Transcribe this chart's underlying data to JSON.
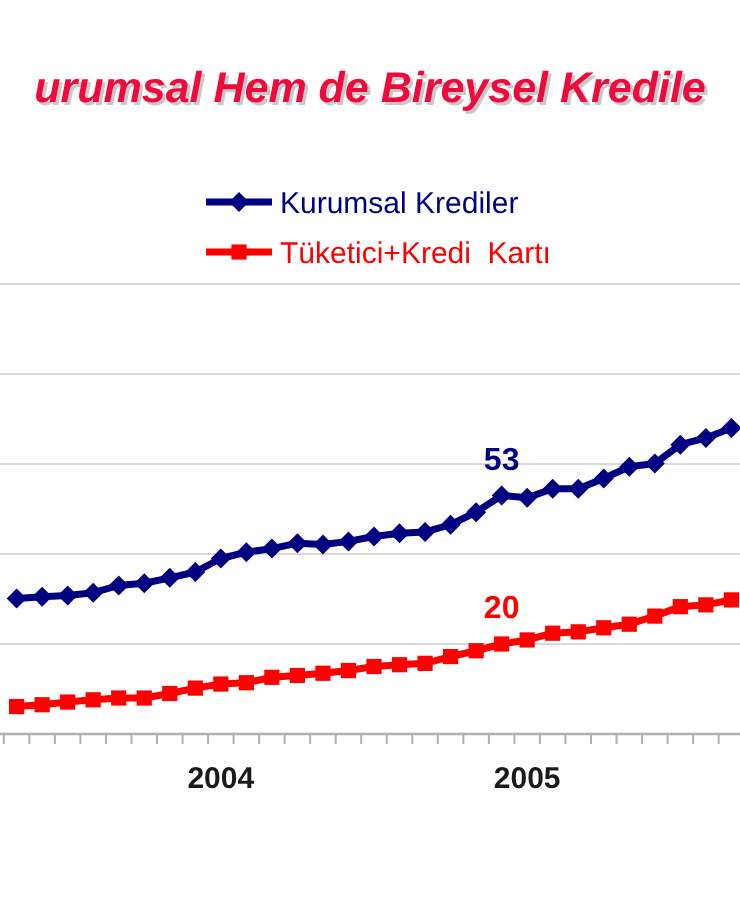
{
  "chart_data": {
    "type": "line",
    "title": "urumsal Hem de Bireysel Kredile",
    "categories": [
      null,
      null,
      null,
      null,
      null,
      null,
      null,
      null,
      "2004",
      null,
      null,
      null,
      null,
      null,
      null,
      null,
      null,
      null,
      null,
      null,
      "2005",
      null,
      null,
      null,
      null,
      null,
      null,
      null,
      null
    ],
    "series": [
      {
        "name": "Kurumsal Krediler",
        "color": "#000080",
        "marker": "diamond",
        "values": [
          30.1,
          30.5,
          30.8,
          31.4,
          33.0,
          33.5,
          34.7,
          36.0,
          39.0,
          40.4,
          41.2,
          42.4,
          42.1,
          42.8,
          43.9,
          44.6,
          44.9,
          46.5,
          49.3,
          53,
          52.5,
          54.5,
          54.5,
          56.8,
          59.4,
          60.1,
          64.3,
          65.8,
          68.0
        ],
        "value_labels": [
          null,
          null,
          null,
          null,
          null,
          null,
          null,
          null,
          null,
          null,
          null,
          null,
          null,
          null,
          null,
          null,
          null,
          null,
          null,
          "53",
          null,
          null,
          null,
          null,
          null,
          null,
          null,
          null,
          null
        ]
      },
      {
        "name": "Tüketici+Kredi  Kartı",
        "color": "#ff0000",
        "marker": "square",
        "values": [
          6.1,
          6.5,
          7.1,
          7.6,
          8.0,
          8.0,
          9.0,
          10.2,
          11.1,
          11.4,
          12.6,
          13.0,
          13.5,
          14.1,
          15.0,
          15.4,
          15.7,
          17.2,
          18.5,
          20,
          20.9,
          22.4,
          22.7,
          23.6,
          24.4,
          26.2,
          28.3,
          28.7,
          29.8
        ],
        "value_labels": [
          null,
          null,
          null,
          null,
          null,
          null,
          null,
          null,
          null,
          null,
          null,
          null,
          null,
          null,
          null,
          null,
          null,
          null,
          null,
          "20",
          null,
          null,
          null,
          null,
          null,
          null,
          null,
          null,
          null
        ]
      }
    ],
    "ylim": [
      0,
      100
    ],
    "yticks": [
      {
        "value": 20,
        "label": null
      },
      {
        "value": 40,
        "label": null
      },
      {
        "value": 60,
        "label": null
      },
      {
        "value": 80,
        "label": null
      },
      {
        "value": 100,
        "label": null
      }
    ],
    "tick_labels": "x",
    "grid": "y",
    "legend": "top",
    "line_style": "solid"
  }
}
